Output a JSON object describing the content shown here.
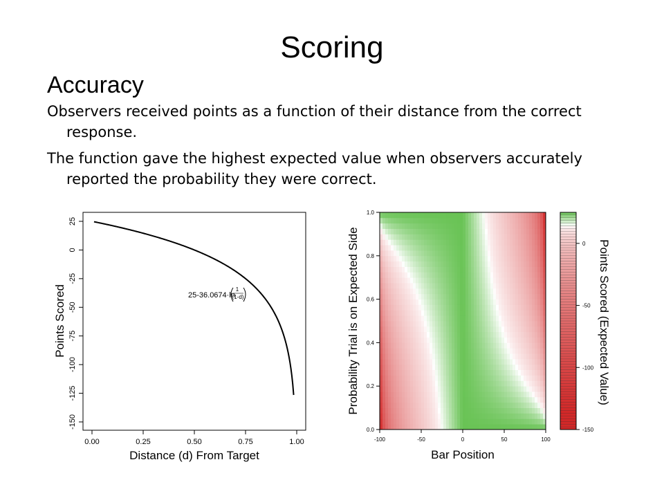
{
  "slide": {
    "title": "Scoring",
    "subtitle": "Accuracy",
    "bullets": [
      "Observers received points as a function of their distance from the correct response.",
      "The function gave the highest expected value when observers accurately reported the probability they were correct."
    ]
  },
  "chart_data": [
    {
      "type": "line",
      "xlabel": "Distance (d) From Target",
      "ylabel": "Points Scored",
      "xlim": [
        0,
        1
      ],
      "ylim": [
        -155,
        30
      ],
      "x_ticks": [
        "0.00",
        "0.25",
        "0.50",
        "0.75",
        "1.00"
      ],
      "y_ticks": [
        "25",
        "0",
        "-25",
        "-50",
        "-75",
        "-100",
        "-125",
        "-150"
      ],
      "formula": {
        "text": "25-36.0674·ln",
        "fraction_num": "1",
        "fraction_den": "(1-d)"
      },
      "function": {
        "a": 25,
        "b": 36.0674,
        "x_start": 0.01,
        "x_end": 0.985
      },
      "line_color": "#000000"
    },
    {
      "type": "heatmap",
      "xlabel": "Bar Position",
      "ylabel": "Probability Trial is on Expected Side",
      "xlim": [
        -100,
        100
      ],
      "ylim": [
        0,
        1
      ],
      "x_ticks": [
        "-100",
        "-50",
        "0",
        "50",
        "100"
      ],
      "y_ticks": [
        "0.0",
        "0.2",
        "0.4",
        "0.6",
        "0.8",
        "1.0"
      ],
      "colorbar": {
        "label": "Points Scored (Expected Value)",
        "range": [
          -150,
          25
        ],
        "ticks": [
          "0",
          "-50",
          "-100",
          "-150"
        ],
        "low_color": "#c62828",
        "high_color": "#2e7d32"
      }
    }
  ]
}
